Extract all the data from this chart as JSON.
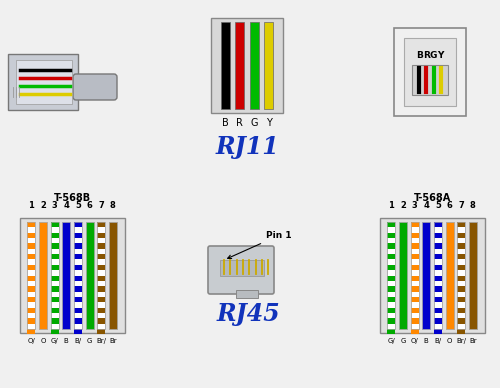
{
  "bg_color": "#f0f0f0",
  "rj11_title": "RJ11",
  "rj45_title": "RJ45",
  "t568b_title": "T-568B",
  "t568a_title": "T-568A",
  "rj11_wire_colors": [
    "#000000",
    "#cc0000",
    "#00bb00",
    "#ddcc00"
  ],
  "rj11_wire_labels": [
    "B",
    "R",
    "G",
    "Y"
  ],
  "t568b_wires": [
    {
      "color": "#ff8800",
      "solid": false,
      "label": "O/"
    },
    {
      "color": "#ff8800",
      "solid": true,
      "label": "O"
    },
    {
      "color": "#00aa00",
      "solid": false,
      "label": "G/"
    },
    {
      "color": "#0000cc",
      "solid": true,
      "label": "B"
    },
    {
      "color": "#0000cc",
      "solid": false,
      "label": "B/"
    },
    {
      "color": "#00aa00",
      "solid": true,
      "label": "G"
    },
    {
      "color": "#885500",
      "solid": false,
      "label": "Br/"
    },
    {
      "color": "#885500",
      "solid": true,
      "label": "Br"
    }
  ],
  "t568a_wires": [
    {
      "color": "#00aa00",
      "solid": false,
      "label": "G/"
    },
    {
      "color": "#00aa00",
      "solid": true,
      "label": "G"
    },
    {
      "color": "#ff8800",
      "solid": false,
      "label": "O/"
    },
    {
      "color": "#0000cc",
      "solid": true,
      "label": "B"
    },
    {
      "color": "#0000cc",
      "solid": false,
      "label": "B/"
    },
    {
      "color": "#ff8800",
      "solid": true,
      "label": "O"
    },
    {
      "color": "#885500",
      "solid": false,
      "label": "Br/"
    },
    {
      "color": "#885500",
      "solid": true,
      "label": "Br"
    }
  ],
  "rj11_jack_labels": [
    "B",
    "R",
    "G",
    "Y"
  ],
  "rj11_jack_colors": [
    "#000000",
    "#cc0000",
    "#00bb00",
    "#ddcc00"
  ]
}
